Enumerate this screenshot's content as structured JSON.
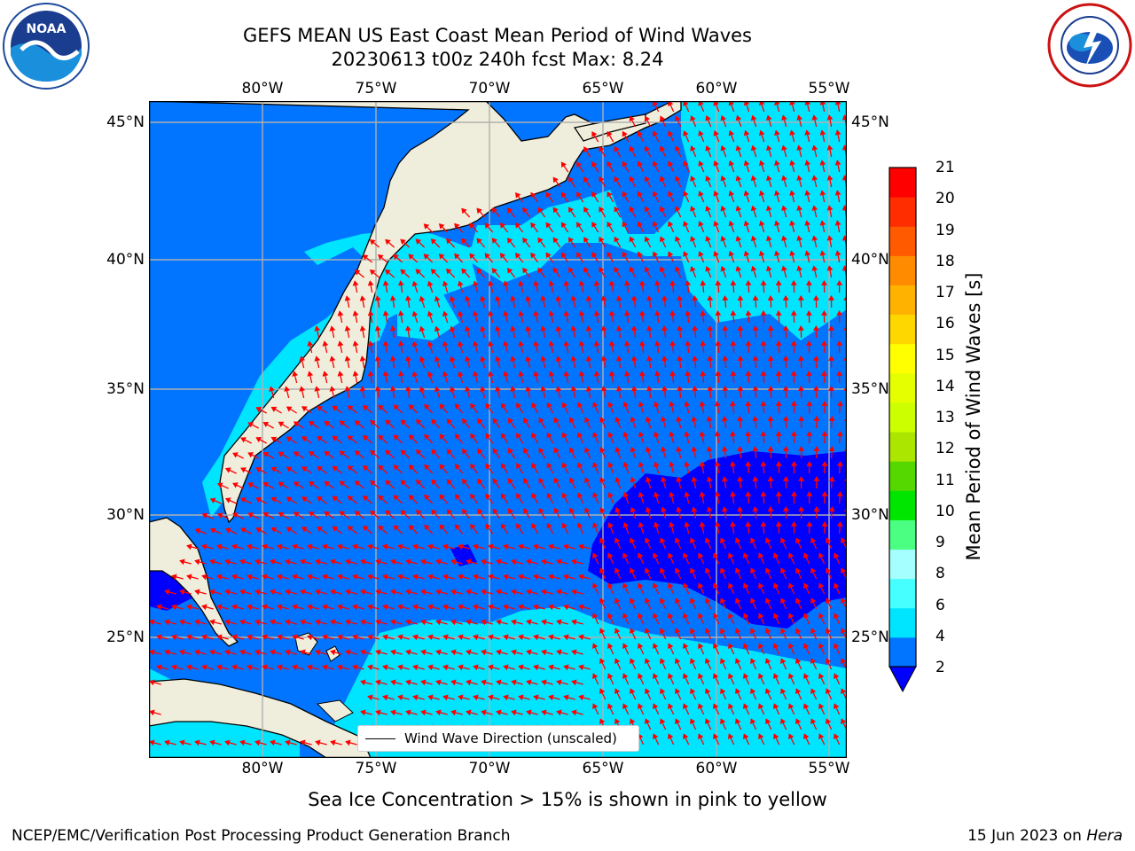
{
  "title": {
    "line1": "GEFS MEAN US East Coast Mean Period of Wind Waves",
    "line2": "20230613 t00z 240h fcst   Max: 8.24"
  },
  "logos": {
    "left": "noaa-logo",
    "right": "national-weather-service-logo"
  },
  "map": {
    "lon_ticks": [
      "80°W",
      "75°W",
      "70°W",
      "65°W",
      "60°W",
      "55°W"
    ],
    "lat_ticks": [
      "45°N",
      "40°N",
      "35°N",
      "30°N",
      "25°N"
    ],
    "legend_label": "Wind Wave Direction (unscaled)",
    "land_color": "#efeedc",
    "arrow_color": "#ff0000",
    "grid_color": "#b0b0b0"
  },
  "colorbar": {
    "title": "Mean Period of Wind Waves [s]",
    "ticks": [
      "2",
      "4",
      "6",
      "8",
      "9",
      "10",
      "11",
      "12",
      "13",
      "14",
      "15",
      "16",
      "17",
      "18",
      "19",
      "20",
      "21"
    ],
    "colors": [
      "#0175ff",
      "#00e5ff",
      "#46ffff",
      "#a6ffff",
      "#4bff83",
      "#00e600",
      "#55d700",
      "#aae600",
      "#ccff00",
      "#e6ff00",
      "#ffff00",
      "#ffd700",
      "#ffb300",
      "#ff8c00",
      "#ff5a00",
      "#ff2d00",
      "#ff0000"
    ],
    "under_color": "#0000ff"
  },
  "note": "Sea Ice Concentration > 15% is shown in pink to yellow",
  "footer": {
    "left": "NCEP/EMC/Verification Post Processing Product Generation Branch",
    "date": "15 Jun 2023 on ",
    "machine": "Hera"
  }
}
